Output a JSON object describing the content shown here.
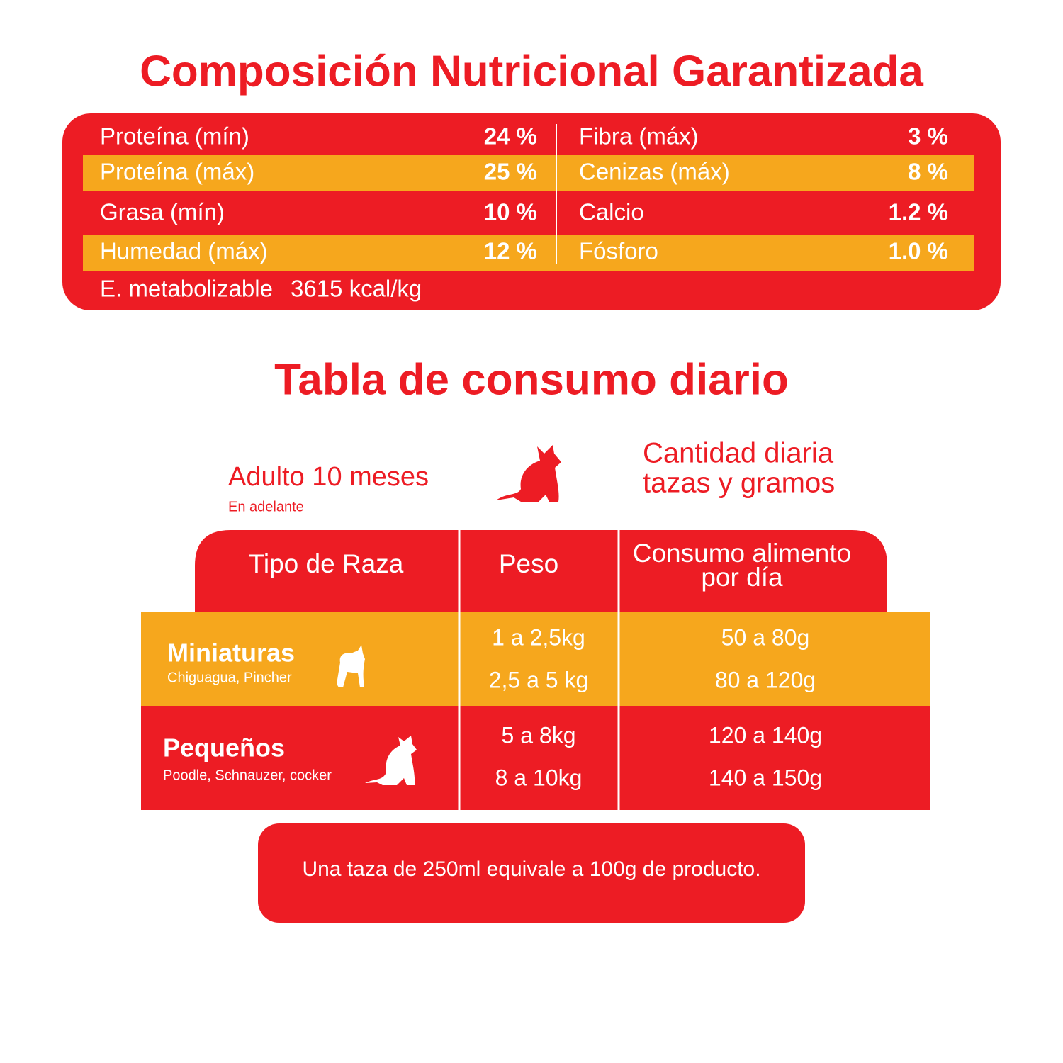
{
  "nutrition": {
    "title": "Composición Nutricional Garantizada",
    "rows": [
      [
        "Proteína (mín)",
        "24 %",
        "Fibra (máx)",
        "3 %"
      ],
      [
        "Proteína (máx)",
        "25 %",
        "Cenizas (máx)",
        "8 %"
      ],
      [
        "Grasa (mín)",
        "10 %",
        "Calcio",
        "1.2 %"
      ],
      [
        "Humedad (máx)",
        "12 %",
        "Fósforo",
        "1.0 %"
      ]
    ],
    "energy": {
      "label": "E. metabolizable",
      "value": "3615 kcal/kg"
    }
  },
  "consumption": {
    "title": "Tabla de consumo diario",
    "age": {
      "title": "Adulto 10 meses",
      "subtitle": "En adelante"
    },
    "quantity": [
      "Cantidad diaria",
      "tazas y gramos"
    ],
    "headers": [
      "Tipo de Raza",
      "Peso",
      [
        "Consumo alimento",
        "por día"
      ]
    ],
    "groups": [
      {
        "name": "Miniaturas",
        "breeds": "Chiguagua, Pincher",
        "rows": [
          [
            "1 a 2,5kg",
            "50 a 80g"
          ],
          [
            "2,5 a 5 kg",
            "80 a 120g"
          ]
        ]
      },
      {
        "name": "Pequeños",
        "breeds": "Poodle, Schnauzer, cocker",
        "rows": [
          [
            "5 a 8kg",
            "120 a 140g"
          ],
          [
            "8 a 10kg",
            "140 a 150g"
          ]
        ]
      }
    ],
    "note": "Una taza de 250ml equivale a 100g de producto."
  }
}
